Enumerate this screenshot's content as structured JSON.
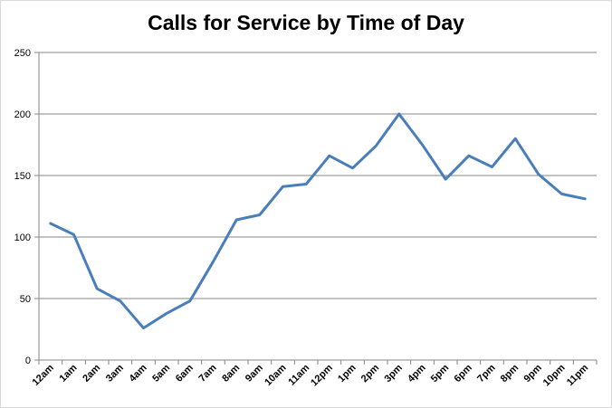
{
  "chart_data": {
    "type": "line",
    "title": "Calls for Service by Time of Day",
    "xlabel": "",
    "ylabel": "",
    "ylim": [
      0,
      250
    ],
    "yticks": [
      0,
      50,
      100,
      150,
      200,
      250
    ],
    "grid": true,
    "legend": "none",
    "categories": [
      "12am",
      "1am",
      "2am",
      "3am",
      "4am",
      "5am",
      "6am",
      "7am",
      "8am",
      "9am",
      "10am",
      "11am",
      "12pm",
      "1pm",
      "2pm",
      "3pm",
      "4pm",
      "5pm",
      "6pm",
      "7pm",
      "8pm",
      "9pm",
      "10pm",
      "11pm"
    ],
    "series": [
      {
        "color": "#4a7ebb",
        "values": [
          111,
          102,
          58,
          48,
          26,
          38,
          48,
          80,
          114,
          118,
          141,
          143,
          166,
          156,
          174,
          200,
          175,
          147,
          166,
          157,
          180,
          151,
          135,
          131
        ]
      }
    ]
  }
}
